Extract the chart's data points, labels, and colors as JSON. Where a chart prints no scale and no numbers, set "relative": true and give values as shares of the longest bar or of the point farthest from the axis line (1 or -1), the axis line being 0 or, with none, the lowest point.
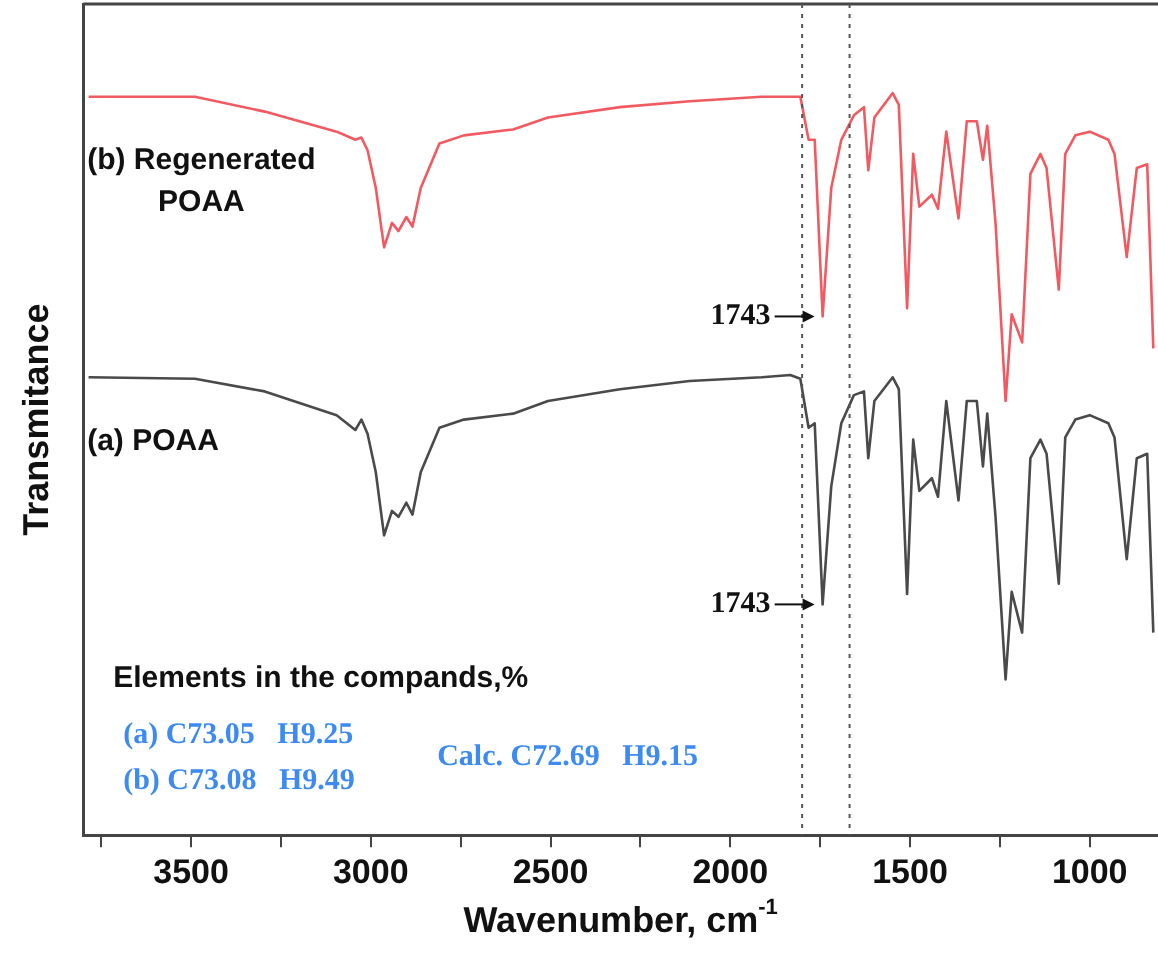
{
  "chart_data": {
    "type": "line",
    "relative": true,
    "xlabel": "Wavenumber, cm$^{-1}$",
    "ylabel": "Transmitance",
    "xlim": [
      3800,
      810
    ],
    "xticks": [
      {
        "value": 3750,
        "label": null
      },
      3500,
      {
        "value": 3250,
        "label": null
      },
      3000,
      {
        "value": 2750,
        "label": null
      },
      2500,
      {
        "value": 2250,
        "label": null
      },
      2000,
      {
        "value": 1750,
        "label": null
      },
      1500,
      {
        "value": 1250,
        "label": null
      },
      1000
    ],
    "grid": false,
    "series": [
      {
        "name": "(b) Regenerated POAA",
        "color": "#f25a62",
        "x": [
          3785,
          3489,
          3295,
          3095,
          3043,
          3026,
          3009,
          2986,
          2963,
          2941,
          2923,
          2901,
          2884,
          2861,
          2809,
          2741,
          2604,
          2507,
          2307,
          2113,
          1913,
          1833,
          1805,
          1782,
          1765,
          1743,
          1719,
          1691,
          1656,
          1628,
          1616,
          1599,
          1548,
          1531,
          1508,
          1491,
          1474,
          1439,
          1422,
          1399,
          1365,
          1342,
          1314,
          1297,
          1285,
          1262,
          1234,
          1217,
          1188,
          1165,
          1137,
          1120,
          1086,
          1068,
          1040,
          1000,
          948,
          931,
          897,
          869,
          840,
          823
        ],
        "values": [
          0.995,
          0.995,
          0.975,
          0.948,
          0.937,
          0.94,
          0.923,
          0.872,
          0.792,
          0.825,
          0.814,
          0.833,
          0.82,
          0.872,
          0.932,
          0.943,
          0.951,
          0.967,
          0.981,
          0.989,
          0.995,
          0.995,
          0.995,
          0.937,
          0.937,
          0.699,
          0.872,
          0.937,
          0.97,
          0.981,
          0.896,
          0.967,
          1,
          0.984,
          0.71,
          0.918,
          0.847,
          0.863,
          0.844,
          0.948,
          0.831,
          0.962,
          0.962,
          0.91,
          0.956,
          0.825,
          0.585,
          0.702,
          0.664,
          0.891,
          0.918,
          0.899,
          0.735,
          0.918,
          0.943,
          0.948,
          0.937,
          0.918,
          0.779,
          0.899,
          0.904,
          0.656
        ]
      },
      {
        "name": "(a) POAA",
        "color": "#4a4a4a",
        "x": [
          3785,
          3489,
          3295,
          3095,
          3043,
          3026,
          3009,
          2986,
          2963,
          2941,
          2923,
          2901,
          2884,
          2861,
          2809,
          2741,
          2604,
          2507,
          2307,
          2113,
          1913,
          1833,
          1805,
          1782,
          1765,
          1743,
          1719,
          1691,
          1656,
          1628,
          1616,
          1599,
          1548,
          1531,
          1508,
          1491,
          1474,
          1439,
          1422,
          1399,
          1365,
          1342,
          1314,
          1297,
          1285,
          1262,
          1234,
          1217,
          1188,
          1165,
          1137,
          1120,
          1086,
          1068,
          1040,
          1000,
          948,
          931,
          897,
          869,
          840,
          823
        ],
        "values": [
          0.617,
          0.615,
          0.598,
          0.566,
          0.546,
          0.56,
          0.541,
          0.489,
          0.404,
          0.437,
          0.429,
          0.448,
          0.432,
          0.489,
          0.549,
          0.56,
          0.568,
          0.585,
          0.601,
          0.612,
          0.617,
          0.62,
          0.615,
          0.549,
          0.555,
          0.311,
          0.47,
          0.555,
          0.593,
          0.598,
          0.508,
          0.585,
          0.617,
          0.601,
          0.325,
          0.533,
          0.464,
          0.481,
          0.456,
          0.585,
          0.451,
          0.585,
          0.585,
          0.497,
          0.568,
          0.429,
          0.21,
          0.328,
          0.273,
          0.508,
          0.533,
          0.514,
          0.339,
          0.536,
          0.56,
          0.566,
          0.555,
          0.536,
          0.372,
          0.508,
          0.514,
          0.273
        ]
      }
    ],
    "ref_lines": [
      {
        "axis": "x",
        "value": 1800,
        "line_style": "dotted",
        "color": "#555555"
      },
      {
        "axis": "x",
        "value": 1668,
        "line_style": "dotted",
        "color": "#555555"
      }
    ],
    "annotations": [
      {
        "text": "1743",
        "x": 1743,
        "y": 0.699
      },
      {
        "text": "1743",
        "x": 1743,
        "y": 0.311
      },
      "Elements in the compands,%",
      "(a) C73.05   H9.25",
      "(b) C73.08   H9.49",
      "Calc. C72.69   H9.15"
    ]
  }
}
